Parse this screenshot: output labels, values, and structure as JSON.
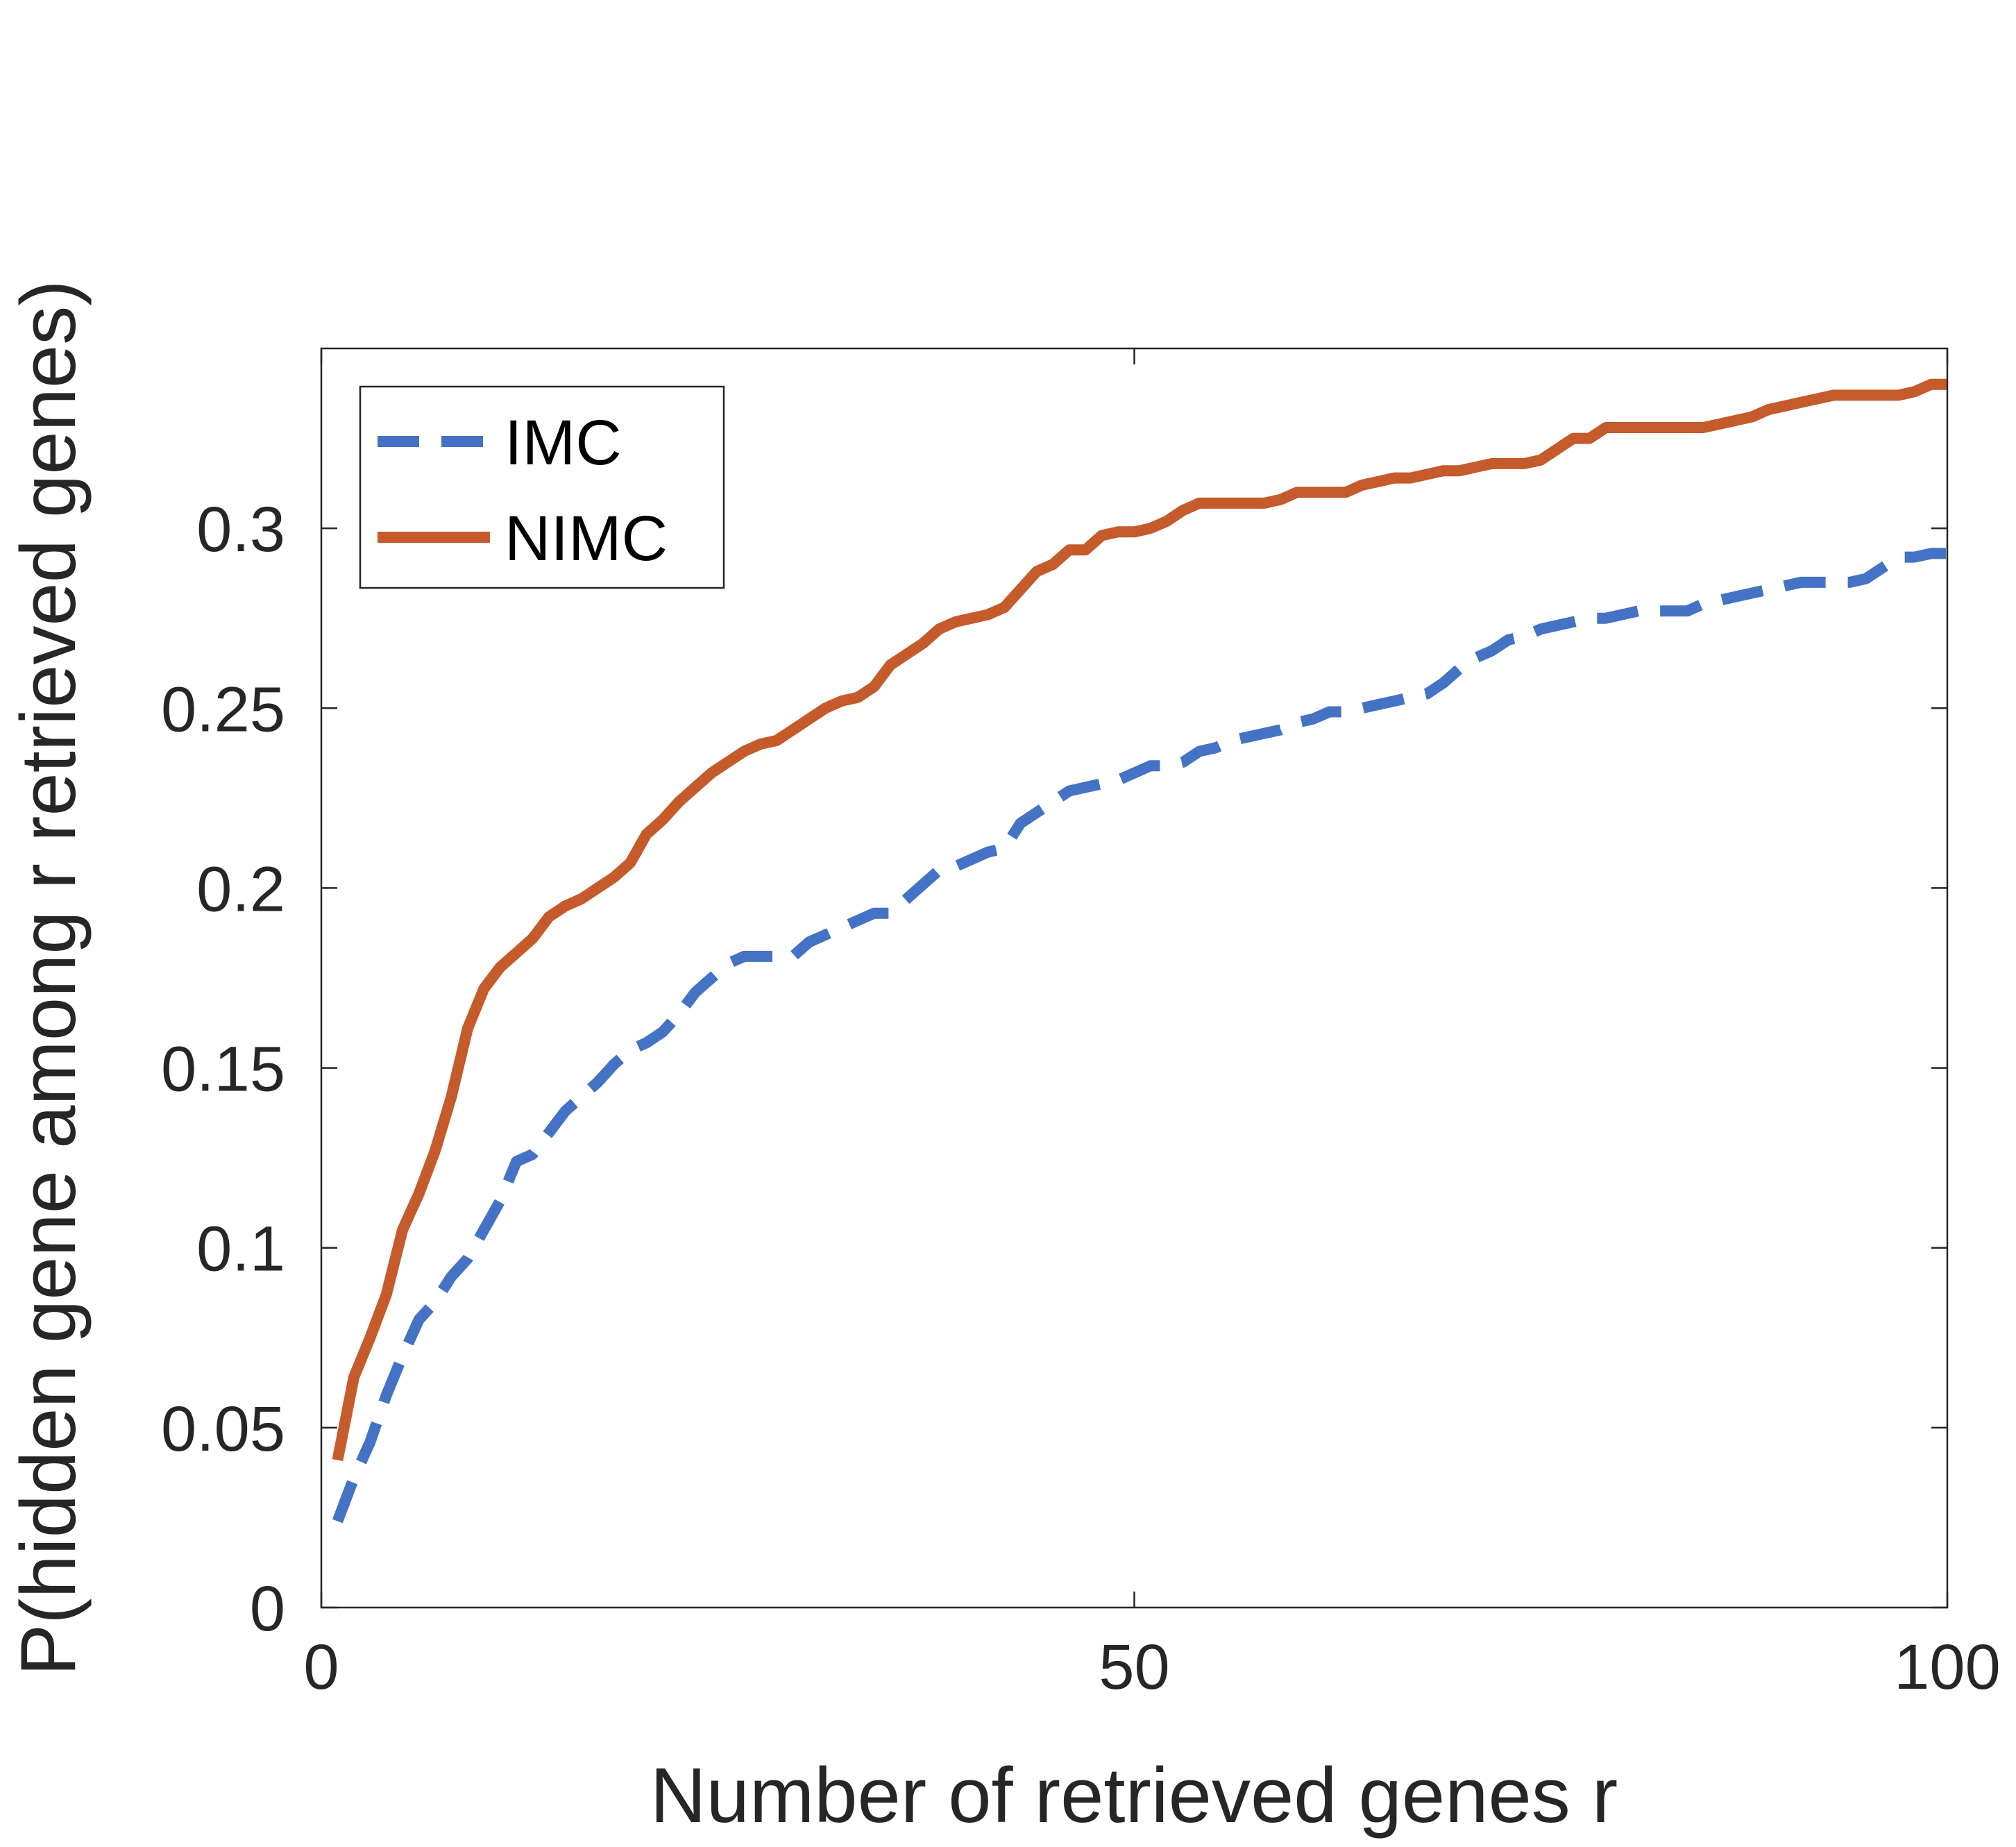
{
  "chart_data": {
    "type": "line",
    "title": "",
    "xlabel": "Number of retrieved genes r",
    "ylabel": "P(hidden gene among r retrieved genes)",
    "xlim": [
      0,
      100
    ],
    "ylim": [
      0,
      0.35
    ],
    "xticks": [
      0,
      50,
      100
    ],
    "xtick_labels": [
      "0",
      "50",
      "100"
    ],
    "yticks": [
      0,
      0.05,
      0.1,
      0.15,
      0.2,
      0.25,
      0.3
    ],
    "ytick_labels": [
      "0",
      "0.05",
      "0.1",
      "0.15",
      "0.2",
      "0.25",
      "0.3"
    ],
    "grid": false,
    "legend_position": "top-left",
    "x": [
      1,
      2,
      3,
      4,
      5,
      6,
      7,
      8,
      9,
      10,
      11,
      12,
      13,
      14,
      15,
      16,
      17,
      18,
      19,
      20,
      21,
      22,
      23,
      24,
      25,
      26,
      27,
      28,
      29,
      30,
      31,
      32,
      33,
      34,
      35,
      36,
      37,
      38,
      39,
      40,
      41,
      42,
      43,
      44,
      45,
      46,
      47,
      48,
      49,
      50,
      51,
      52,
      53,
      54,
      55,
      56,
      57,
      58,
      59,
      60,
      61,
      62,
      63,
      64,
      65,
      66,
      67,
      68,
      69,
      70,
      71,
      72,
      73,
      74,
      75,
      76,
      77,
      78,
      79,
      80,
      81,
      82,
      83,
      84,
      85,
      86,
      87,
      88,
      89,
      90,
      91,
      92,
      93,
      94,
      95,
      96,
      97,
      98,
      99,
      100
    ],
    "series": [
      {
        "name": "IMC",
        "color": "#4472C4",
        "style": "dashed",
        "values": [
          0.024,
          0.036,
          0.046,
          0.059,
          0.07,
          0.08,
          0.085,
          0.092,
          0.097,
          0.105,
          0.113,
          0.124,
          0.126,
          0.132,
          0.138,
          0.142,
          0.146,
          0.151,
          0.155,
          0.157,
          0.16,
          0.165,
          0.171,
          0.175,
          0.179,
          0.181,
          0.181,
          0.181,
          0.181,
          0.185,
          0.187,
          0.189,
          0.191,
          0.193,
          0.193,
          0.197,
          0.201,
          0.205,
          0.206,
          0.208,
          0.21,
          0.211,
          0.218,
          0.221,
          0.224,
          0.227,
          0.228,
          0.229,
          0.23,
          0.232,
          0.234,
          0.234,
          0.235,
          0.238,
          0.239,
          0.241,
          0.242,
          0.243,
          0.244,
          0.246,
          0.247,
          0.249,
          0.249,
          0.25,
          0.251,
          0.252,
          0.253,
          0.254,
          0.257,
          0.261,
          0.264,
          0.266,
          0.269,
          0.27,
          0.272,
          0.273,
          0.274,
          0.275,
          0.275,
          0.276,
          0.277,
          0.277,
          0.277,
          0.277,
          0.279,
          0.28,
          0.281,
          0.282,
          0.283,
          0.284,
          0.285,
          0.285,
          0.285,
          0.285,
          0.286,
          0.289,
          0.292,
          0.292,
          0.293,
          0.293
        ]
      },
      {
        "name": "NIMC",
        "color": "#C55A2B",
        "style": "solid",
        "values": [
          0.041,
          0.064,
          0.075,
          0.087,
          0.105,
          0.115,
          0.127,
          0.142,
          0.161,
          0.172,
          0.178,
          0.182,
          0.186,
          0.192,
          0.195,
          0.197,
          0.2,
          0.203,
          0.207,
          0.215,
          0.219,
          0.224,
          0.228,
          0.232,
          0.235,
          0.238,
          0.24,
          0.241,
          0.244,
          0.247,
          0.25,
          0.252,
          0.253,
          0.256,
          0.262,
          0.265,
          0.268,
          0.272,
          0.274,
          0.275,
          0.276,
          0.278,
          0.283,
          0.288,
          0.29,
          0.294,
          0.294,
          0.298,
          0.299,
          0.299,
          0.3,
          0.302,
          0.305,
          0.307,
          0.307,
          0.307,
          0.307,
          0.307,
          0.308,
          0.31,
          0.31,
          0.31,
          0.31,
          0.312,
          0.313,
          0.314,
          0.314,
          0.315,
          0.316,
          0.316,
          0.317,
          0.318,
          0.318,
          0.318,
          0.319,
          0.322,
          0.325,
          0.325,
          0.328,
          0.328,
          0.328,
          0.328,
          0.328,
          0.328,
          0.328,
          0.329,
          0.33,
          0.331,
          0.333,
          0.334,
          0.335,
          0.336,
          0.337,
          0.337,
          0.337,
          0.337,
          0.337,
          0.338,
          0.34,
          0.34
        ]
      }
    ]
  }
}
